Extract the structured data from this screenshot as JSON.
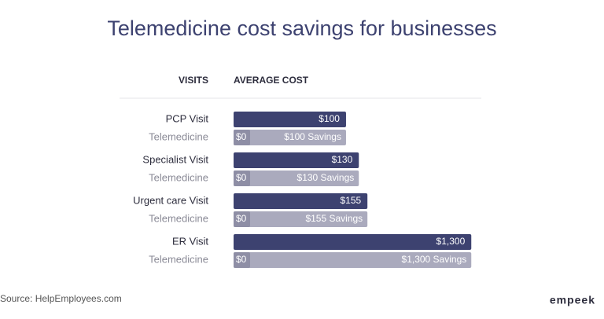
{
  "chart_data": {
    "type": "bar",
    "title": "Telemedicine cost savings for businesses",
    "column_headers": [
      "VISITS",
      "AVERAGE COST"
    ],
    "categories": [
      "PCP Visit",
      "Specialist Visit",
      "Urgent care Visit",
      "ER Visit"
    ],
    "row_label": "Telemedicine",
    "log_scale": true,
    "xlim": [
      10,
      2000
    ],
    "series": [
      {
        "color": "#3d4270",
        "values": [
          100,
          130,
          155,
          1300
        ],
        "value_labels": [
          "$100",
          "$130",
          "$155",
          "$1,300"
        ]
      },
      {
        "color": "#8e8ea5",
        "values": [
          0,
          0,
          0,
          0
        ],
        "value_labels": [
          "$0",
          "$0",
          "$0",
          "$0"
        ]
      },
      {
        "color": "#aaaabd",
        "values": [
          100,
          130,
          155,
          1300
        ],
        "value_labels": [
          "$100 Savings",
          "$130 Savings",
          "$155 Savings",
          "$1,300 Savings"
        ]
      }
    ],
    "source": "Source: HelpEmployees.com",
    "logo": "empeek"
  }
}
